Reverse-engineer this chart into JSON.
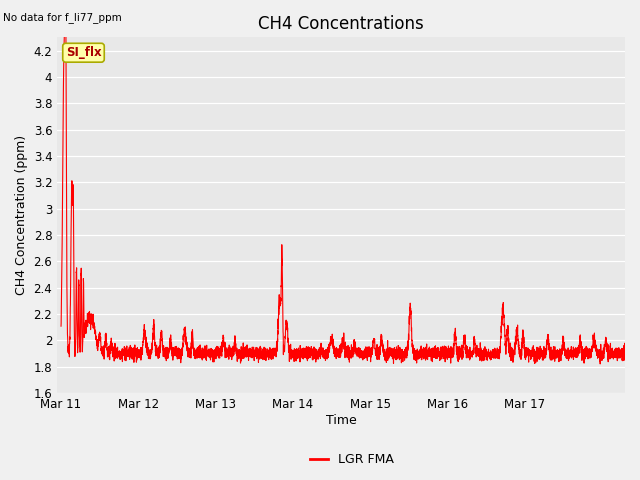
{
  "title": "CH4 Concentrations",
  "ylabel": "CH4 Concentration (ppm)",
  "xlabel": "Time",
  "top_left_text": "No data for f_li77_ppm",
  "annotation_text": "SI_flx",
  "ylim": [
    1.6,
    4.3
  ],
  "yticks": [
    1.6,
    1.8,
    2.0,
    2.2,
    2.4,
    2.6,
    2.8,
    3.0,
    3.2,
    3.4,
    3.6,
    3.8,
    4.0,
    4.2
  ],
  "xtick_labels": [
    "Mar 11",
    "Mar 12",
    "Mar 13",
    "Mar 14",
    "Mar 15",
    "Mar 16",
    "Mar 17"
  ],
  "line_color": "#ff0000",
  "line_width": 0.8,
  "legend_label": "LGR FMA",
  "fig_bg_color": "#f0f0f0",
  "plot_bg_color": "#e8e8e8",
  "grid_color": "#ffffff",
  "annotation_bg": "#ffffaa",
  "annotation_border": "#aaaa00",
  "title_fontsize": 12,
  "label_fontsize": 9,
  "tick_fontsize": 8.5
}
